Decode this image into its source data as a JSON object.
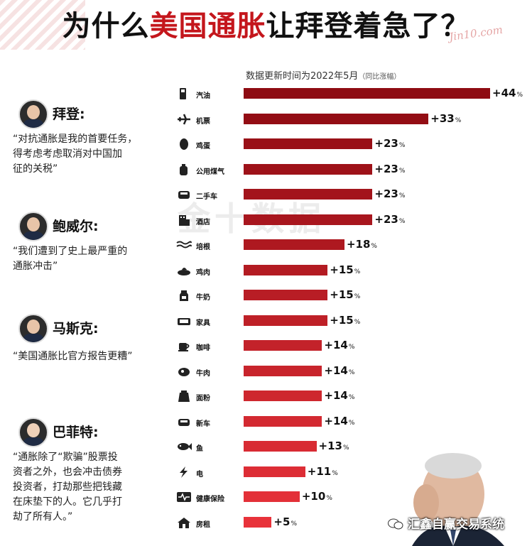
{
  "title": {
    "part1": "为什么",
    "part2": "美国通胀",
    "part3": "让拜登着急了？"
  },
  "signature": "Jin10.com",
  "subtitle": {
    "main": "数据更新时间为2022年5月",
    "note": "（同比涨幅）"
  },
  "watermark": "金十数据",
  "people": [
    {
      "name": "拜登:",
      "quote_lines": [
        "“对抗通胀是我的首要任务，",
        "得考虑考虑取消对中国加",
        "征的关税”"
      ]
    },
    {
      "name": "鲍威尔:",
      "quote_lines": [
        "“我们遭到了史上最严重的",
        "通胀冲击”"
      ]
    },
    {
      "name": "马斯克:",
      "quote_lines": [
        "“美国通胀比官方报告更糟”"
      ]
    },
    {
      "name": "巴菲特:",
      "quote_lines": [
        "“通胀除了“欺骗”股票投",
        "资者之外，也会冲击债券",
        "投资者，打劫那些把钱藏",
        "在床垫下的人。它几乎打",
        "劫了所有人。”"
      ]
    }
  ],
  "chart_data": {
    "type": "bar",
    "orientation": "horizontal",
    "title": "数据更新时间为2022年5月",
    "subtitle": "（同比涨幅）",
    "categories": [
      "汽油",
      "机票",
      "鸡蛋",
      "公用煤气",
      "二手车",
      "酒店",
      "培根",
      "鸡肉",
      "牛奶",
      "家具",
      "咖啡",
      "牛肉",
      "面粉",
      "新车",
      "鱼",
      "电",
      "健康保险",
      "房租"
    ],
    "icons": [
      "gas-pump-icon",
      "airplane-icon",
      "egg-icon",
      "gas-canister-icon",
      "car-icon",
      "hotel-icon",
      "bacon-icon",
      "chicken-icon",
      "milk-icon",
      "sofa-icon",
      "coffee-icon",
      "beef-icon",
      "flour-icon",
      "new-car-icon",
      "fish-icon",
      "lightning-icon",
      "health-icon",
      "house-icon"
    ],
    "values": [
      44,
      33,
      23,
      23,
      23,
      23,
      18,
      15,
      15,
      15,
      14,
      14,
      14,
      14,
      13,
      11,
      10,
      5
    ],
    "labels": [
      "+44",
      "+33",
      "+23",
      "+23",
      "+23",
      "+23",
      "+18",
      "+15",
      "+15",
      "+15",
      "+14",
      "+14",
      "+14",
      "+14",
      "+13",
      "+11",
      "+10",
      "+5"
    ],
    "unit": "%",
    "xlim": [
      0,
      44
    ],
    "colors": {
      "dark": "#8e0b12",
      "light": "#e8323a"
    }
  },
  "watermark_footer": "汇鑫自赢交易系统",
  "colors": {
    "accent": "#c4161c",
    "text": "#111111"
  }
}
